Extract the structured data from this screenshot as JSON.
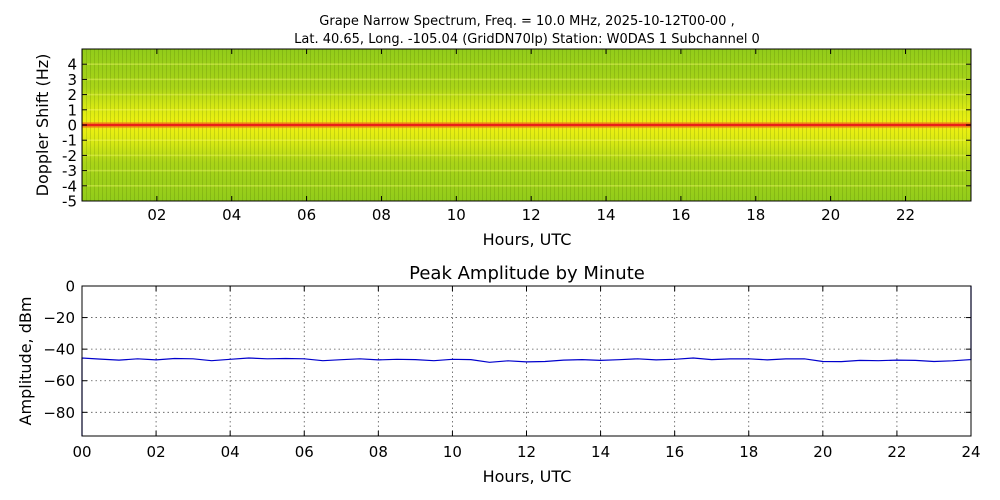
{
  "chart_data": [
    {
      "type": "heatmap",
      "title_line1": "Grape Narrow Spectrum, Freq. = 10.0 MHz, 2025-10-12T00-00 ,",
      "title_line2": "Lat.  40.65, Long. -105.04 (GridDN70lp) Station: W0DAS 1 Subchannel 0",
      "xlabel": "Hours, UTC",
      "ylabel": "Doppler Shift (Hz)",
      "xlim": [
        0,
        23.75
      ],
      "ylim": [
        -5,
        5
      ],
      "x_ticks": [
        2,
        4,
        6,
        8,
        10,
        12,
        14,
        16,
        18,
        20,
        22
      ],
      "x_tick_labels": [
        "02",
        "04",
        "06",
        "08",
        "10",
        "12",
        "14",
        "16",
        "18",
        "20",
        "22"
      ],
      "y_ticks": [
        4,
        3,
        2,
        1,
        0,
        -1,
        -2,
        -3,
        -4,
        -5
      ],
      "y_tick_labels": [
        "4",
        "3",
        "2",
        "1",
        "0",
        "-1",
        "-2",
        "-3",
        "-4",
        "-5"
      ],
      "peak_doppler_hz": 0.0,
      "colors": {
        "background_green": "#92cc1a",
        "band_yellow": "#e8ef12",
        "peak_red": "#e8201a"
      }
    },
    {
      "type": "line",
      "title": "Peak Amplitude by Minute",
      "xlabel": "Hours, UTC",
      "ylabel": "Amplitude, dBm",
      "xlim": [
        0,
        24
      ],
      "ylim": [
        -95,
        0
      ],
      "grid": true,
      "x_ticks": [
        0,
        2,
        4,
        6,
        8,
        10,
        12,
        14,
        16,
        18,
        20,
        22,
        24
      ],
      "x_tick_labels": [
        "00",
        "02",
        "04",
        "06",
        "08",
        "10",
        "12",
        "14",
        "16",
        "18",
        "20",
        "22",
        "24"
      ],
      "y_ticks": [
        0,
        -20,
        -40,
        -60,
        -80
      ],
      "y_tick_labels": [
        "0",
        "−20",
        "−40",
        "−60",
        "−80"
      ],
      "line_color": "#0000cc",
      "series": [
        {
          "x": [
            0,
            0.5,
            1,
            1.5,
            2,
            2.5,
            3,
            3.5,
            4,
            4.5,
            5,
            5.5,
            6,
            6.5,
            7,
            7.5,
            8,
            8.5,
            9,
            9.5,
            10,
            10.5,
            11,
            11.5,
            12,
            12.5,
            13,
            13.5,
            14,
            14.5,
            15,
            15.5,
            16,
            16.5,
            17,
            17.5,
            18,
            18.5,
            19,
            19.5,
            20,
            20.5,
            21,
            21.5,
            22,
            22.5,
            23,
            23.5,
            24
          ],
          "y": [
            -46,
            -46,
            -47,
            -46.5,
            -46.5,
            -46,
            -46.5,
            -47,
            -46.5,
            -46,
            -45.8,
            -46,
            -46.5,
            -47,
            -46.8,
            -46.5,
            -46.5,
            -46.5,
            -47,
            -47,
            -46.5,
            -47,
            -48,
            -47.5,
            -48.5,
            -47.5,
            -47,
            -47,
            -46.8,
            -46.8,
            -46.5,
            -46.5,
            -46.5,
            -46,
            -46.3,
            -46.3,
            -46.5,
            -46.5,
            -46.3,
            -46.5,
            -47.5,
            -48,
            -47.5,
            -47,
            -47,
            -47.5,
            -47.5,
            -47.5,
            -47
          ]
        }
      ]
    }
  ]
}
